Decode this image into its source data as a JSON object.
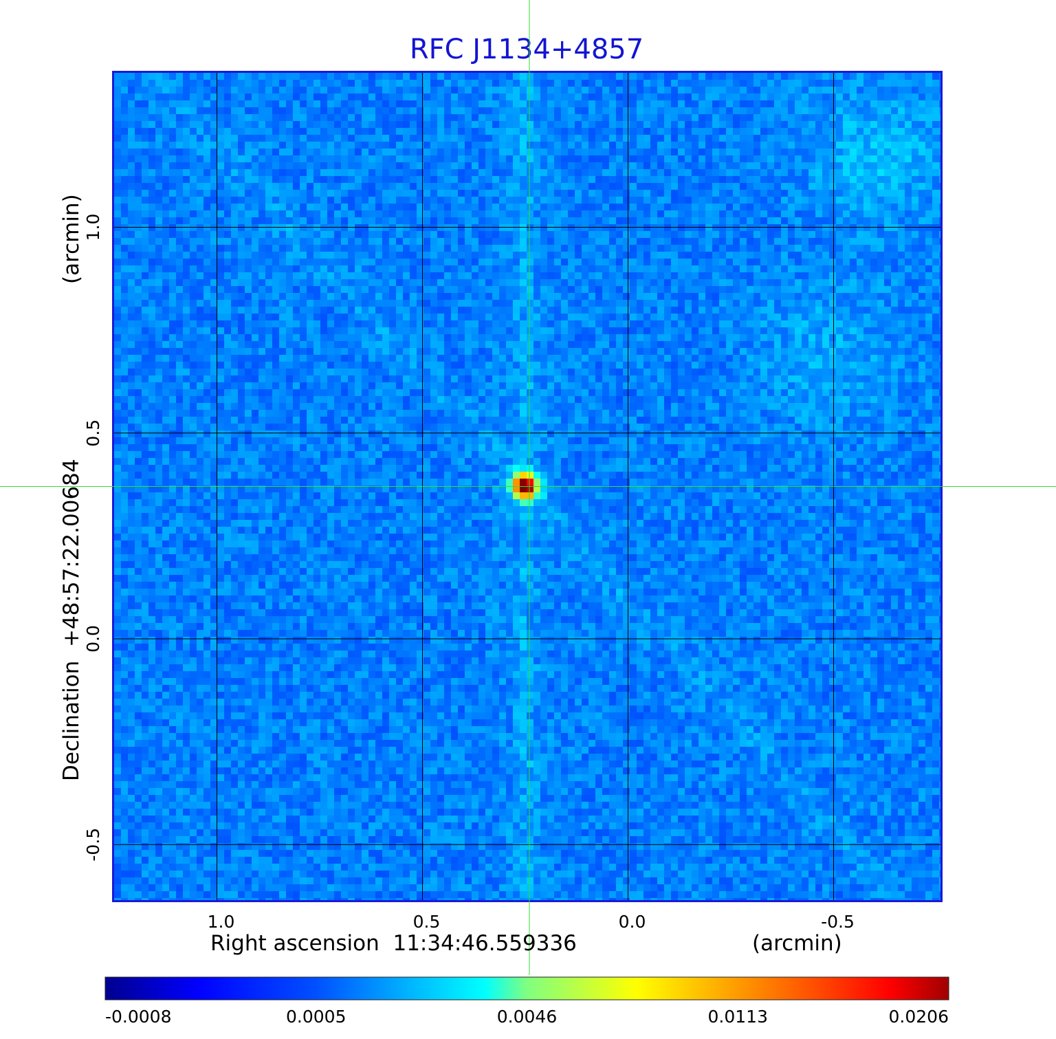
{
  "chart_data": {
    "type": "heatmap",
    "title": "RFC J1134+4857",
    "xlabel": "Right ascension  11:34:46.559336",
    "xunit": "(arcmin)",
    "ylabel": "Declination  +48:57:22.00684",
    "yunit": "(arcmin)",
    "x_ticks": [
      "1.0",
      "0.5",
      "0.0",
      "-0.5"
    ],
    "x_tick_values": [
      1.0,
      0.5,
      0.0,
      -0.5
    ],
    "y_ticks": [
      "1.0",
      "0.5",
      "0.0",
      "-0.5"
    ],
    "y_tick_values": [
      1.0,
      0.5,
      0.0,
      -0.5
    ],
    "xlim": [
      1.25,
      -0.76
    ],
    "ylim": [
      -0.635,
      1.375
    ],
    "grid": true,
    "crosshair": {
      "x": 0.24,
      "y": 0.37,
      "color": "#33dd33"
    },
    "peak": {
      "x": 0.25,
      "y": 0.37,
      "value": 0.0206
    },
    "colorbar": {
      "labels": [
        "-0.0008",
        "0.0005",
        "0.0046",
        "0.0113",
        "0.0206"
      ],
      "values": [
        -0.0008,
        0.0005,
        0.0046,
        0.0113,
        0.0206
      ],
      "colormap": "jet"
    },
    "frame_color": "#1a1ad8"
  }
}
